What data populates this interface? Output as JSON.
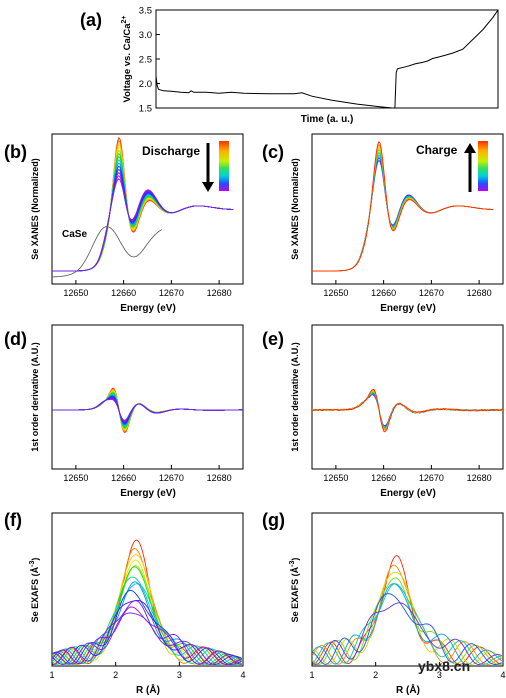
{
  "chart_data": [
    {
      "id": "a",
      "panel_label": "(a)",
      "type": "line",
      "xlabel": "Time (a. u.)",
      "ylabel": "Voltage vs. Ca/Ca",
      "ylabel_sup": "2+",
      "ylim": [
        1.5,
        3.5
      ],
      "yticks": [
        "1.5",
        "2.0",
        "2.5",
        "3.0",
        "3.5"
      ],
      "xlim": [
        0,
        100
      ],
      "series": [
        {
          "x": [
            0,
            0.5,
            1,
            3,
            6,
            10,
            13,
            14,
            15,
            20,
            25,
            30,
            35,
            45,
            55,
            58,
            62,
            70,
            80,
            90,
            94,
            95,
            95.5,
            96,
            100
          ],
          "y": [
            2.15,
            1.95,
            1.88,
            1.85,
            1.84,
            1.82,
            1.81,
            1.85,
            1.82,
            1.82,
            1.8,
            1.82,
            1.8,
            1.79,
            1.79,
            1.81,
            1.74,
            1.66,
            1.58,
            1.52,
            1.5,
            1.5,
            2.22,
            2.3,
            2.35
          ]
        },
        {
          "x": [
            100,
            103,
            106,
            108,
            110,
            113,
            118,
            122,
            126,
            130,
            134,
            136
          ],
          "y": [
            2.35,
            2.4,
            2.43,
            2.46,
            2.51,
            2.55,
            2.62,
            2.7,
            2.9,
            3.1,
            3.35,
            3.5
          ]
        }
      ]
    },
    {
      "id": "b",
      "panel_label": "(b)",
      "type": "line",
      "xlabel": "Energy (eV)",
      "ylabel": "Se XANES (Normalized)",
      "xlim": [
        12645,
        12685
      ],
      "xticks": [
        "12650",
        "12660",
        "12670",
        "12680"
      ],
      "legend_title": "Discharge",
      "reference_label": "CaSe",
      "spectra_count": 14,
      "color_order": "red to violet"
    },
    {
      "id": "c",
      "panel_label": "(c)",
      "type": "line",
      "xlabel": "Energy (eV)",
      "ylabel": "Se XANES (Normalized)",
      "xlim": [
        12645,
        12685
      ],
      "xticks": [
        "12650",
        "12660",
        "12670",
        "12680"
      ],
      "legend_title": "Charge",
      "spectra_count": 8,
      "color_order": "violet to red"
    },
    {
      "id": "d",
      "panel_label": "(d)",
      "type": "line",
      "xlabel": "Energy (eV)",
      "ylabel": "1st order derivative (A.U.)",
      "xlim": [
        12645,
        12685
      ],
      "xticks": [
        "12650",
        "12660",
        "12670",
        "12680"
      ],
      "spectra_count": 14
    },
    {
      "id": "e",
      "panel_label": "(e)",
      "type": "line",
      "xlabel": "Energy (eV)",
      "ylabel": "1st order derivative (A.U.)",
      "xlim": [
        12645,
        12685
      ],
      "xticks": [
        "12650",
        "12660",
        "12670",
        "12680"
      ],
      "spectra_count": 8
    },
    {
      "id": "f",
      "panel_label": "(f)",
      "type": "line",
      "xlabel": "R (Å)",
      "ylabel": "Se EXAFS (Å",
      "ylabel_sup": "-3",
      "xlim": [
        1,
        4
      ],
      "xticks": [
        "1",
        "2",
        "3",
        "4"
      ],
      "spectra_count": 14
    },
    {
      "id": "g",
      "panel_label": "(g)",
      "type": "line",
      "xlabel": "R (Å)",
      "ylabel": "Se EXAFS (Å",
      "ylabel_sup": "-3",
      "xlim": [
        1,
        4
      ],
      "xticks": [
        "1",
        "2",
        "3",
        "4"
      ],
      "spectra_count": 8
    }
  ],
  "watermark": "ybx8.cn",
  "colors": {
    "rainbow": [
      "#ff2a00",
      "#ff7a00",
      "#ffc400",
      "#d8ee00",
      "#86e800",
      "#22d800",
      "#00d28a",
      "#00c8d8",
      "#0090ff",
      "#0040ff",
      "#3a1cff",
      "#7a10ff",
      "#a800f0",
      "#6a2bd8"
    ],
    "reference": "#555555",
    "axis": "#000000"
  }
}
